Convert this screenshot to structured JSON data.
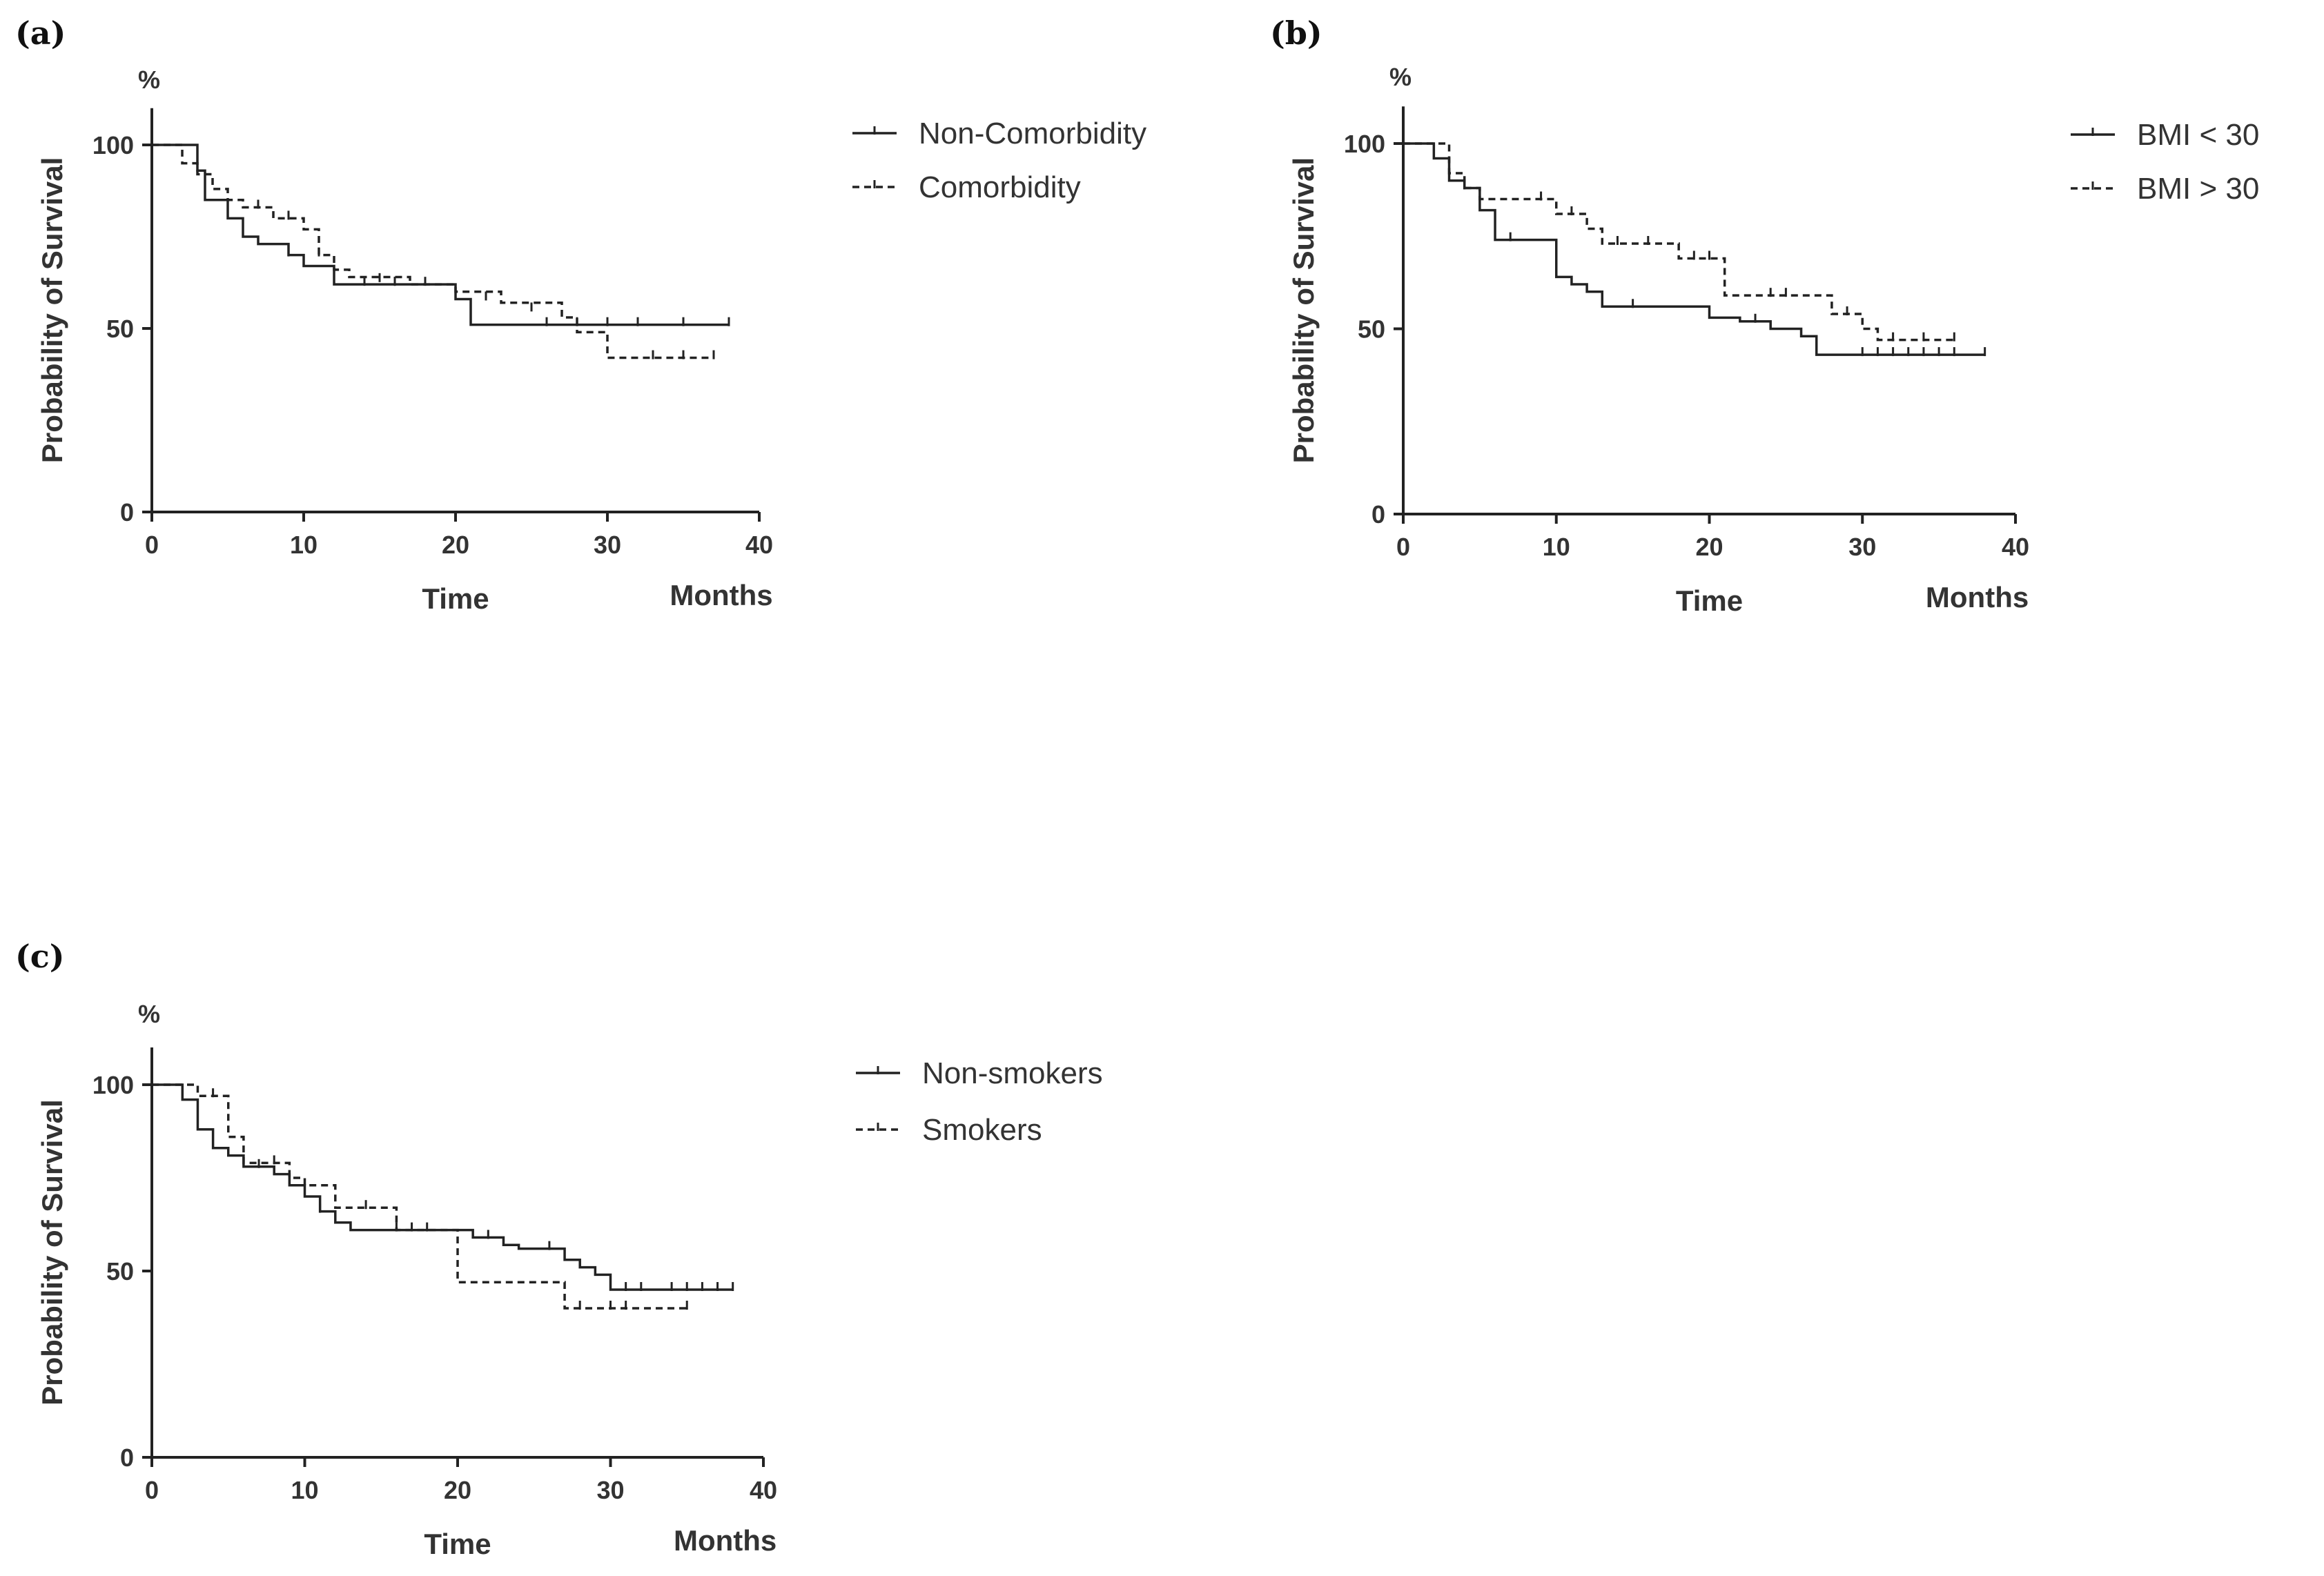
{
  "chart_data": [
    {
      "type": "line",
      "panel_label": "(a)",
      "ylabel": "Probability of Survival",
      "xlabel": "Time",
      "x_unit": "Months",
      "y_unit": "%",
      "xlim": [
        0,
        40
      ],
      "ylim": [
        0,
        110
      ],
      "x_ticks": [
        "0",
        "10",
        "20",
        "30",
        "40"
      ],
      "y_ticks": [
        "0",
        "50",
        "100"
      ],
      "series": [
        {
          "name": "Non-Comorbidity",
          "style": "solid",
          "steps": [
            [
              0,
              100
            ],
            [
              3,
              93
            ],
            [
              3.5,
              85
            ],
            [
              5,
              80
            ],
            [
              6,
              75
            ],
            [
              7,
              73
            ],
            [
              9,
              70
            ],
            [
              10,
              67
            ],
            [
              12,
              62
            ],
            [
              20,
              58
            ],
            [
              21,
              51
            ],
            [
              38,
              51
            ]
          ],
          "censored": [
            [
              9,
              70
            ],
            [
              14,
              62
            ],
            [
              16,
              62
            ],
            [
              18,
              62
            ],
            [
              26,
              51
            ],
            [
              28,
              51
            ],
            [
              30,
              51
            ],
            [
              32,
              51
            ],
            [
              35,
              51
            ],
            [
              38,
              51
            ]
          ]
        },
        {
          "name": "Comorbidity",
          "style": "dashed",
          "steps": [
            [
              0,
              100
            ],
            [
              2,
              95
            ],
            [
              3,
              92
            ],
            [
              4,
              88
            ],
            [
              5,
              85
            ],
            [
              6,
              83
            ],
            [
              8,
              80
            ],
            [
              10,
              77
            ],
            [
              11,
              70
            ],
            [
              12,
              66
            ],
            [
              13,
              64
            ],
            [
              17,
              62
            ],
            [
              20,
              60
            ],
            [
              23,
              57
            ],
            [
              27,
              53
            ],
            [
              28,
              49
            ],
            [
              30,
              42
            ],
            [
              37,
              42
            ]
          ],
          "censored": [
            [
              7,
              83
            ],
            [
              9,
              80
            ],
            [
              11,
              70
            ],
            [
              15,
              63
            ],
            [
              16,
              62
            ],
            [
              22,
              58
            ],
            [
              25,
              55
            ],
            [
              33,
              42
            ],
            [
              35,
              42
            ],
            [
              37,
              42
            ]
          ]
        }
      ]
    },
    {
      "type": "line",
      "panel_label": "(b)",
      "ylabel": "Probability of Survival",
      "xlabel": "Time",
      "x_unit": "Months",
      "y_unit": "%",
      "xlim": [
        0,
        40
      ],
      "ylim": [
        0,
        110
      ],
      "x_ticks": [
        "0",
        "10",
        "20",
        "30",
        "40"
      ],
      "y_ticks": [
        "0",
        "50",
        "100"
      ],
      "series": [
        {
          "name": "BMI < 30",
          "style": "solid",
          "steps": [
            [
              0,
              100
            ],
            [
              2,
              96
            ],
            [
              3,
              90
            ],
            [
              4,
              88
            ],
            [
              5,
              82
            ],
            [
              6,
              74
            ],
            [
              8,
              74
            ],
            [
              10,
              64
            ],
            [
              11,
              62
            ],
            [
              12,
              60
            ],
            [
              13,
              56
            ],
            [
              20,
              53
            ],
            [
              22,
              52
            ],
            [
              24,
              50
            ],
            [
              26,
              48
            ],
            [
              27,
              43
            ],
            [
              38,
              43
            ]
          ],
          "censored": [
            [
              4,
              88
            ],
            [
              7,
              74
            ],
            [
              15,
              56
            ],
            [
              23,
              52
            ],
            [
              30,
              43
            ],
            [
              31,
              43
            ],
            [
              32,
              43
            ],
            [
              33,
              43
            ],
            [
              34,
              43
            ],
            [
              35,
              43
            ],
            [
              36,
              43
            ],
            [
              38,
              43
            ]
          ]
        },
        {
          "name": "BMI > 30",
          "style": "dashed",
          "steps": [
            [
              0,
              100
            ],
            [
              3,
              92
            ],
            [
              4,
              88
            ],
            [
              5,
              85
            ],
            [
              10,
              81
            ],
            [
              12,
              77
            ],
            [
              13,
              73
            ],
            [
              18,
              69
            ],
            [
              21,
              59
            ],
            [
              28,
              54
            ],
            [
              30,
              50
            ],
            [
              31,
              47
            ],
            [
              36,
              47
            ]
          ],
          "censored": [
            [
              9,
              85
            ],
            [
              11,
              81
            ],
            [
              14,
              73
            ],
            [
              16,
              73
            ],
            [
              19,
              69
            ],
            [
              20,
              69
            ],
            [
              24,
              59
            ],
            [
              25,
              59
            ],
            [
              29,
              54
            ],
            [
              32,
              47
            ],
            [
              34,
              47
            ],
            [
              36,
              47
            ]
          ]
        }
      ]
    },
    {
      "type": "line",
      "panel_label": "(c)",
      "ylabel": "Probability of Survival",
      "xlabel": "Time",
      "x_unit": "Months",
      "y_unit": "%",
      "xlim": [
        0,
        40
      ],
      "ylim": [
        0,
        110
      ],
      "x_ticks": [
        "0",
        "10",
        "20",
        "30",
        "40"
      ],
      "y_ticks": [
        "0",
        "50",
        "100"
      ],
      "series": [
        {
          "name": "Non-smokers",
          "style": "solid",
          "steps": [
            [
              0,
              100
            ],
            [
              2,
              96
            ],
            [
              3,
              88
            ],
            [
              4,
              83
            ],
            [
              5,
              81
            ],
            [
              6,
              78
            ],
            [
              8,
              76
            ],
            [
              9,
              73
            ],
            [
              10,
              70
            ],
            [
              11,
              66
            ],
            [
              12,
              63
            ],
            [
              13,
              61
            ],
            [
              20,
              61
            ],
            [
              21,
              59
            ],
            [
              23,
              57
            ],
            [
              24,
              56
            ],
            [
              27,
              53
            ],
            [
              28,
              51
            ],
            [
              29,
              49
            ],
            [
              30,
              45
            ],
            [
              38,
              45
            ]
          ],
          "censored": [
            [
              7,
              78
            ],
            [
              11,
              66
            ],
            [
              16,
              61
            ],
            [
              17,
              61
            ],
            [
              18,
              61
            ],
            [
              22,
              59
            ],
            [
              26,
              56
            ],
            [
              31,
              45
            ],
            [
              32,
              45
            ],
            [
              34,
              45
            ],
            [
              35,
              45
            ],
            [
              36,
              45
            ],
            [
              37,
              45
            ],
            [
              38,
              45
            ]
          ]
        },
        {
          "name": "Smokers",
          "style": "dashed",
          "steps": [
            [
              0,
              100
            ],
            [
              3,
              97
            ],
            [
              5,
              86
            ],
            [
              6,
              79
            ],
            [
              9,
              75
            ],
            [
              10,
              73
            ],
            [
              12,
              67
            ],
            [
              16,
              61
            ],
            [
              20,
              47
            ],
            [
              27,
              40
            ],
            [
              35,
              40
            ]
          ],
          "censored": [
            [
              4,
              97
            ],
            [
              8,
              79
            ],
            [
              14,
              67
            ],
            [
              28,
              40
            ],
            [
              30,
              40
            ],
            [
              31,
              40
            ],
            [
              35,
              40
            ]
          ]
        }
      ]
    }
  ]
}
